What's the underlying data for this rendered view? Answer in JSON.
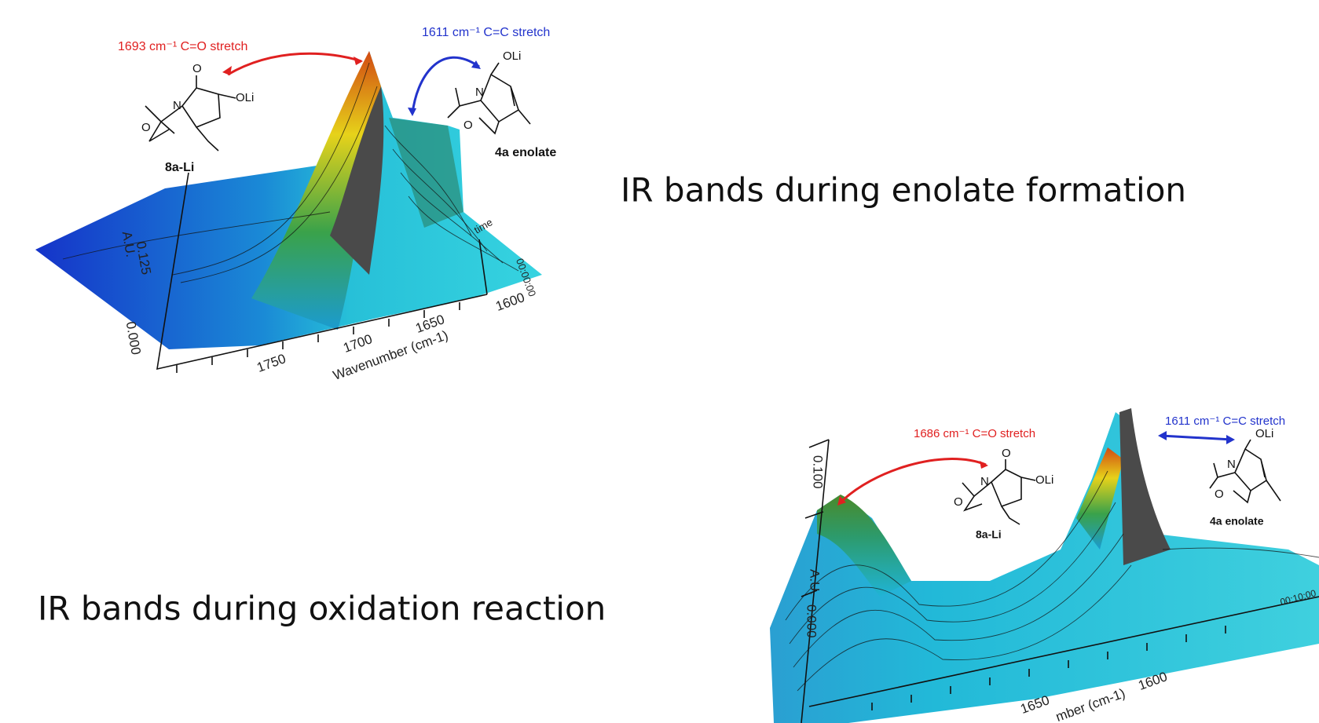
{
  "slide": {
    "captions": [
      "IR bands during enolate formation",
      "IR bands during oxidation reaction"
    ],
    "figures": [
      {
        "co_label": "1693 cm⁻¹ C=O stretch",
        "cc_label": "1611 cm⁻¹ C=C stretch",
        "compound_left": "8a-Li",
        "compound_right": "4a enolate",
        "atoms": [
          "O",
          "N",
          "O",
          "OLi",
          "OLi",
          "N",
          "O"
        ],
        "y_ticks": [
          "0.125",
          "0.000"
        ],
        "y_label": "A.U.",
        "x_ticks": [
          "1750",
          "1700",
          "1650",
          "1600"
        ],
        "x_label": "Wavenumber (cm-1)",
        "time_tick": "00:00:00",
        "time_label": "time"
      },
      {
        "co_label": "1686 cm⁻¹ C=O stretch",
        "cc_label": "1611 cm⁻¹ C=C stretch",
        "compound_left": "8a-Li",
        "compound_right": "4a enolate",
        "atoms": [
          "O",
          "N",
          "O",
          "OLi",
          "OLi",
          "N",
          "O"
        ],
        "y_ticks": [
          "0.100",
          "0.000"
        ],
        "y_label": "A.U.",
        "x_ticks": [
          "1650",
          "1600"
        ],
        "x_label": "mber (cm-1)",
        "time_tick": "00:10:00"
      }
    ]
  }
}
